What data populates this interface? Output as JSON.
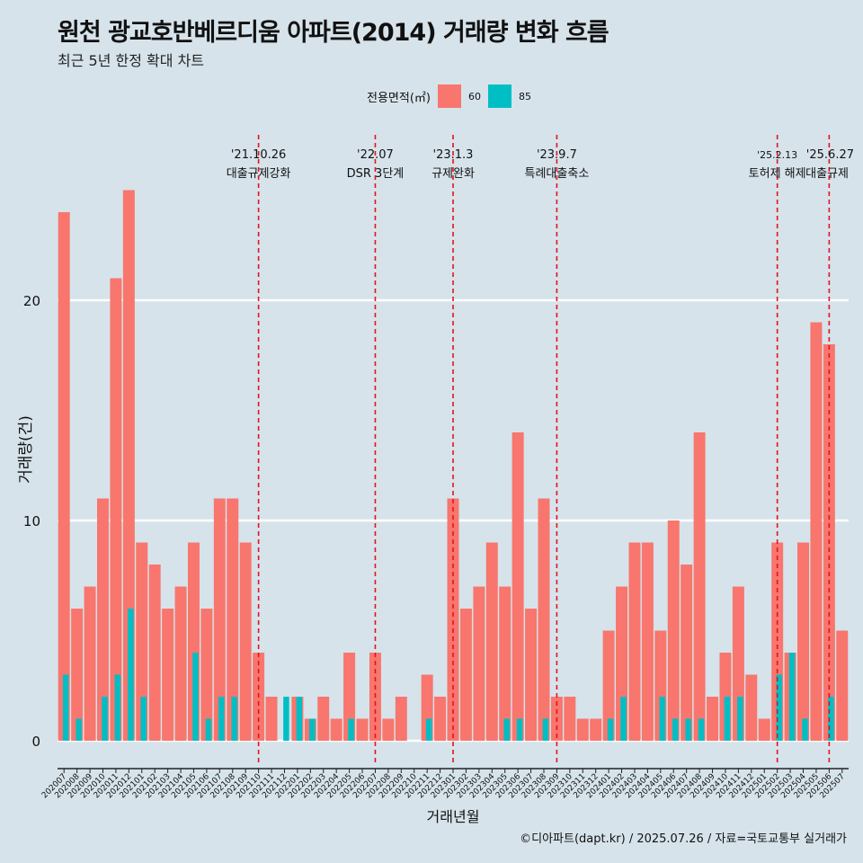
{
  "title": "원천 광교호반베르디움 아파트(2014) 거래량 변화 흐름",
  "subtitle": "최근 5년 한정 확대 차트",
  "caption": "©디아파트(dapt.kr) / 2025.07.26 / 자료=국토교통부 실거래가",
  "legend": {
    "title": "전용면적(㎡)",
    "items": [
      {
        "label": "60",
        "color": "#f8766d"
      },
      {
        "label": "85",
        "color": "#00bfc4"
      }
    ]
  },
  "chart_data": {
    "type": "bar",
    "xlabel": "거래년월",
    "ylabel": "거래량(건)",
    "ylim": [
      -1.1,
      25.5
    ],
    "yticks": [
      0,
      10,
      20
    ],
    "grid": true,
    "legend_position": "top",
    "categories": [
      "202007",
      "202008",
      "202009",
      "202010",
      "202011",
      "202012",
      "202101",
      "202102",
      "202103",
      "202104",
      "202105",
      "202106",
      "202107",
      "202108",
      "202109",
      "202110",
      "202111",
      "202112",
      "202201",
      "202202",
      "202203",
      "202204",
      "202205",
      "202206",
      "202207",
      "202208",
      "202209",
      "202210",
      "202211",
      "202212",
      "202301",
      "202302",
      "202303",
      "202304",
      "202305",
      "202306",
      "202307",
      "202308",
      "202309",
      "202310",
      "202311",
      "202312",
      "202401",
      "202402",
      "202403",
      "202404",
      "202405",
      "202406",
      "202407",
      "202408",
      "202409",
      "202410",
      "202411",
      "202412",
      "202501",
      "202502",
      "202503",
      "202504",
      "202505",
      "202506",
      "202507"
    ],
    "series": [
      {
        "name": "60",
        "color": "#f8766d",
        "values": [
          24,
          6,
          7,
          11,
          21,
          25,
          9,
          8,
          6,
          7,
          9,
          6,
          11,
          11,
          9,
          4,
          2,
          0,
          2,
          1,
          2,
          1,
          4,
          1,
          4,
          1,
          2,
          0,
          3,
          2,
          11,
          6,
          7,
          9,
          7,
          14,
          6,
          11,
          2,
          2,
          1,
          1,
          5,
          7,
          9,
          9,
          5,
          10,
          8,
          14,
          2,
          4,
          7,
          3,
          1,
          9,
          4,
          9,
          19,
          18,
          5
        ]
      },
      {
        "name": "85",
        "color": "#00bfc4",
        "values": [
          3,
          1,
          0,
          2,
          3,
          6,
          2,
          0,
          0,
          0,
          4,
          1,
          2,
          2,
          0,
          0,
          0,
          2,
          2,
          1,
          0,
          0,
          1,
          0,
          0,
          0,
          0,
          0,
          1,
          0,
          0,
          0,
          0,
          0,
          1,
          1,
          0,
          1,
          0,
          0,
          0,
          0,
          1,
          2,
          0,
          0,
          2,
          1,
          1,
          1,
          0,
          2,
          2,
          0,
          0,
          3,
          4,
          1,
          0,
          2,
          0
        ]
      }
    ],
    "annotations": [
      {
        "date": "'21.10.26",
        "text": "대출규제강화",
        "category": "202110"
      },
      {
        "date": "'22.07",
        "text": "DSR 3단계",
        "category": "202207"
      },
      {
        "date": "'23.1.3",
        "text": "규제완화",
        "category": "202301"
      },
      {
        "date": "'23.9.7",
        "text": "특례대출축소",
        "category": "202309"
      },
      {
        "date": "'25.2.13",
        "text": "토허제 해제",
        "category": "202502"
      },
      {
        "date": "'25.6.27",
        "text": "대출규제",
        "category": "202506"
      }
    ]
  }
}
